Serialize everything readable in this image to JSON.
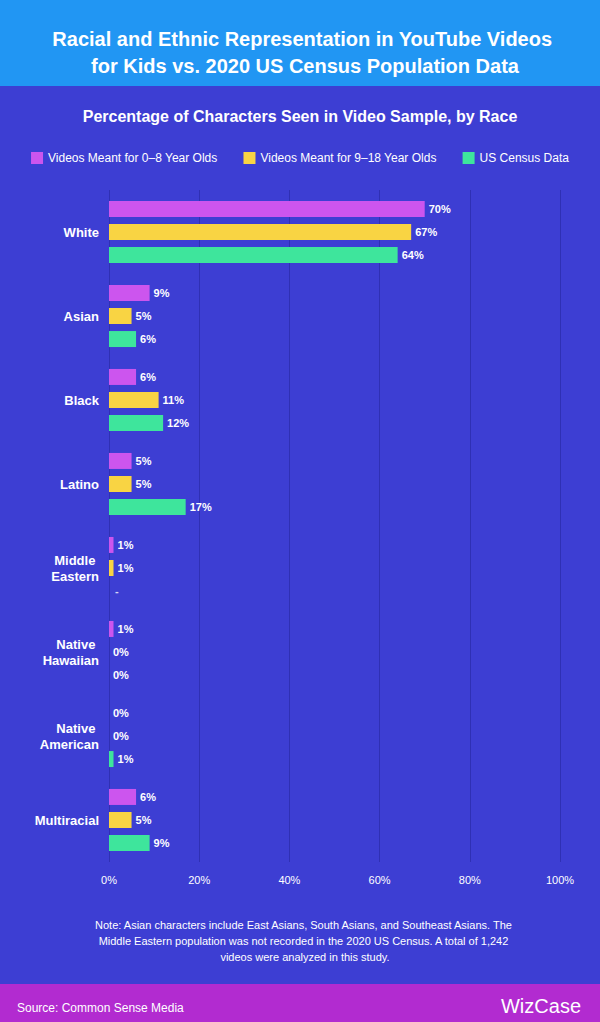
{
  "chart_data": {
    "type": "bar",
    "title": "Racial and Ethnic Representation in YouTube Videos for Kids vs. 2020 US Census Population Data",
    "subtitle": "Percentage of Characters Seen in Video Sample, by Race",
    "orientation": "horizontal",
    "categories": [
      "White",
      "Asian",
      "Black",
      "Latino",
      "Middle Eastern",
      "Native Hawaiian",
      "Native American",
      "Multiracial"
    ],
    "series": [
      {
        "name": "Videos Meant for 0–8 Year Olds",
        "color": "#cc55ee",
        "values": [
          70,
          9,
          6,
          5,
          1,
          1,
          0,
          6
        ],
        "value_labels": [
          "70%",
          "9%",
          "6%",
          "5%",
          "1%",
          "1%",
          "0%",
          "6%"
        ]
      },
      {
        "name": "Videos Meant for 9–18 Year Olds",
        "color": "#f9d443",
        "values": [
          67,
          5,
          11,
          5,
          1,
          0,
          0,
          5
        ],
        "value_labels": [
          "67%",
          "5%",
          "11%",
          "5%",
          "1%",
          "0%",
          "0%",
          "5%"
        ]
      },
      {
        "name": "US Census Data",
        "color": "#3ee59c",
        "values": [
          64,
          6,
          12,
          17,
          null,
          0,
          1,
          9
        ],
        "value_labels": [
          "64%",
          "6%",
          "12%",
          "17%",
          "-",
          "0%",
          "1%",
          "9%"
        ]
      }
    ],
    "xlim": [
      0,
      100
    ],
    "xticks": [
      {
        "value": 0,
        "label": "0%"
      },
      {
        "value": 20,
        "label": "20%"
      },
      {
        "value": 40,
        "label": "40%"
      },
      {
        "value": 60,
        "label": "60%"
      },
      {
        "value": 80,
        "label": "80%"
      },
      {
        "value": 100,
        "label": "100%"
      }
    ],
    "grid": true,
    "legend": "top",
    "data_labels": true,
    "annotations": [
      "Note: Asian characters include East Asians, South Asians, and Southeast Asians. The Middle Eastern population was not recorded in the 2020 US Census. A total of 1,242 videos were analyzed in this study.",
      "Source: Common Sense Media",
      "WizCase"
    ]
  }
}
